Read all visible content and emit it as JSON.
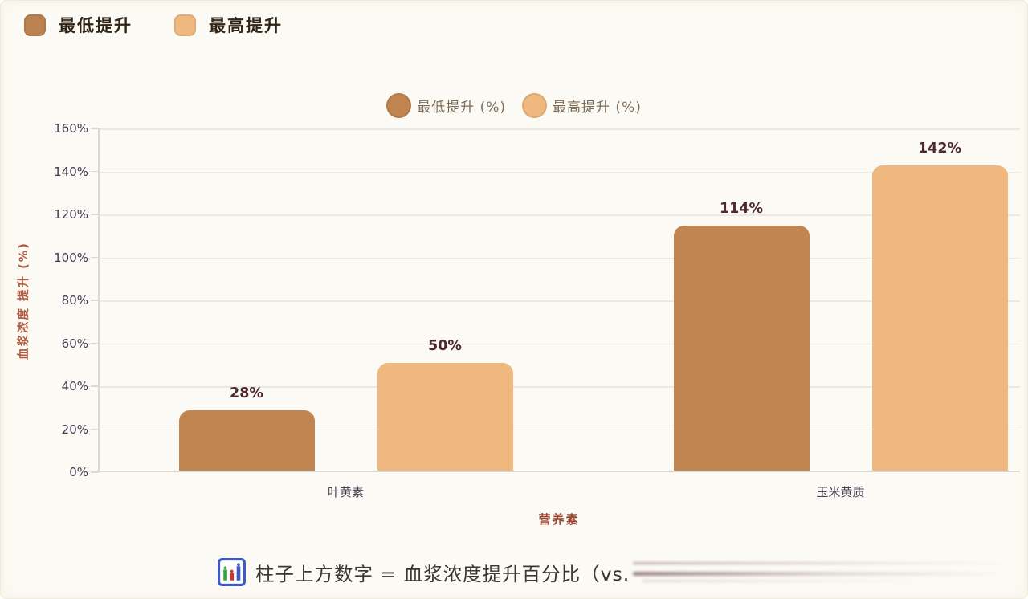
{
  "top_legend": {
    "items": [
      {
        "label": "最低提升",
        "color": "#bc8150"
      },
      {
        "label": "最高提升",
        "color": "#eeb87e"
      }
    ]
  },
  "chart_data": {
    "type": "bar",
    "categories": [
      "叶黄素",
      "玉米黄质"
    ],
    "series": [
      {
        "name": "最低提升 (%)",
        "color": "#c08550",
        "values": [
          28,
          114
        ]
      },
      {
        "name": "最高提升 (%)",
        "color": "#eeb87e",
        "values": [
          50,
          142
        ]
      }
    ],
    "value_labels": [
      [
        "28%",
        "114%"
      ],
      [
        "50%",
        "142%"
      ]
    ],
    "xlabel": "营养素",
    "ylabel": "血浆浓度 提升 (%)",
    "ylim": [
      0,
      160
    ],
    "yticks": [
      "0%",
      "20%",
      "40%",
      "60%",
      "80%",
      "100%",
      "120%",
      "140%",
      "160%"
    ],
    "grid": true,
    "legend_position": "top-center"
  },
  "footer": {
    "icon": "bar-chart-icon",
    "text": "柱子上方数字 = 血浆浓度提升百分比（vs.",
    "suffix": "blurred"
  },
  "colors": {
    "background": "#fcfaf4",
    "min_bar": "#c08550",
    "max_bar": "#eeb87e",
    "value_label": "#4e282c",
    "grid_line": "#ece9e2",
    "axis_line": "#dcd8cf",
    "ytick_text": "#3d3852",
    "category_text": "#474256",
    "x_title": "#9a4630",
    "y_title": "#b15a40",
    "footer_text": "#3b3632"
  }
}
